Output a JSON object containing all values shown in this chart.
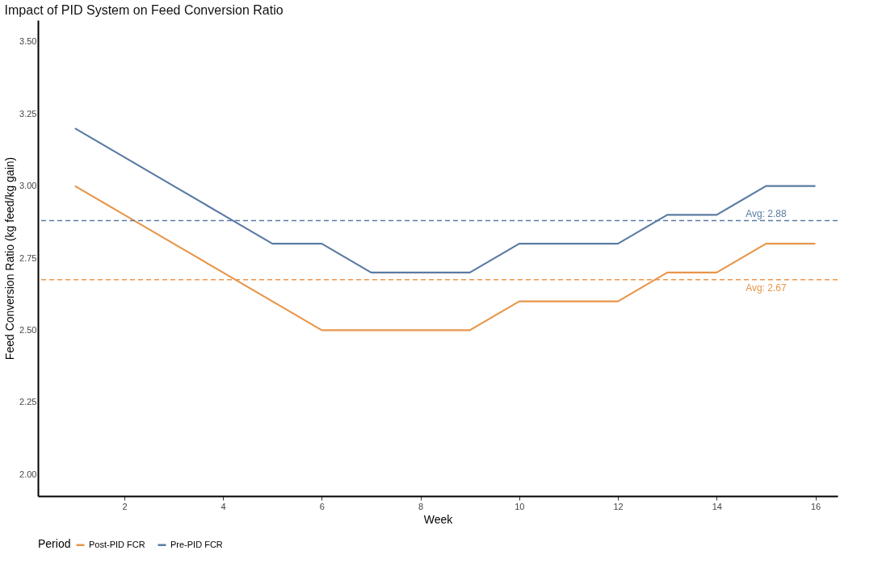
{
  "chart_data": {
    "type": "line",
    "title": "Impact of PID System on Feed Conversion Ratio",
    "xlabel": "Week",
    "ylabel": "Feed Conversion Ratio (kg feed/kg gain)",
    "legend_title": "Period",
    "x": [
      1,
      2,
      3,
      4,
      5,
      6,
      7,
      8,
      9,
      10,
      11,
      12,
      13,
      14,
      15,
      16
    ],
    "series": [
      {
        "name": "Post-PID FCR",
        "color": "#e8964a",
        "values": [
          3.0,
          2.9,
          2.8,
          2.7,
          2.6,
          2.5,
          2.5,
          2.5,
          2.5,
          2.6,
          2.6,
          2.6,
          2.7,
          2.7,
          2.8,
          2.8
        ]
      },
      {
        "name": "Pre-PID FCR",
        "color": "#5b7ba3",
        "values": [
          3.2,
          3.1,
          3.0,
          2.9,
          2.8,
          2.8,
          2.7,
          2.7,
          2.7,
          2.8,
          2.8,
          2.8,
          2.9,
          2.9,
          3.0,
          3.0
        ]
      }
    ],
    "ref_lines": [
      {
        "axis": "y",
        "value": 2.88,
        "label": "Avg: 2.88",
        "color": "#5b7ba3",
        "line_style": "dashed"
      },
      {
        "axis": "y",
        "value": 2.675,
        "label": "Avg: 2.67",
        "color": "#e8964a",
        "line_style": "dashed"
      }
    ],
    "xlim": [
      0.25,
      16.45
    ],
    "xticks": [
      2,
      4,
      6,
      8,
      10,
      12,
      14,
      16
    ],
    "ylim": [
      1.925,
      3.575
    ],
    "yticks": [
      {
        "value": 2,
        "label": "2.00"
      },
      {
        "value": 2.25,
        "label": "2.25"
      },
      {
        "value": 2.5,
        "label": "2.50"
      },
      {
        "value": 2.75,
        "label": "2.75"
      },
      {
        "value": 3,
        "label": "3.00"
      },
      {
        "value": 3.25,
        "label": "3.25"
      },
      {
        "value": 3.5,
        "label": "3.50"
      }
    ],
    "grid": false,
    "legend": "bottom",
    "marker": "none",
    "line_style": "solid"
  }
}
